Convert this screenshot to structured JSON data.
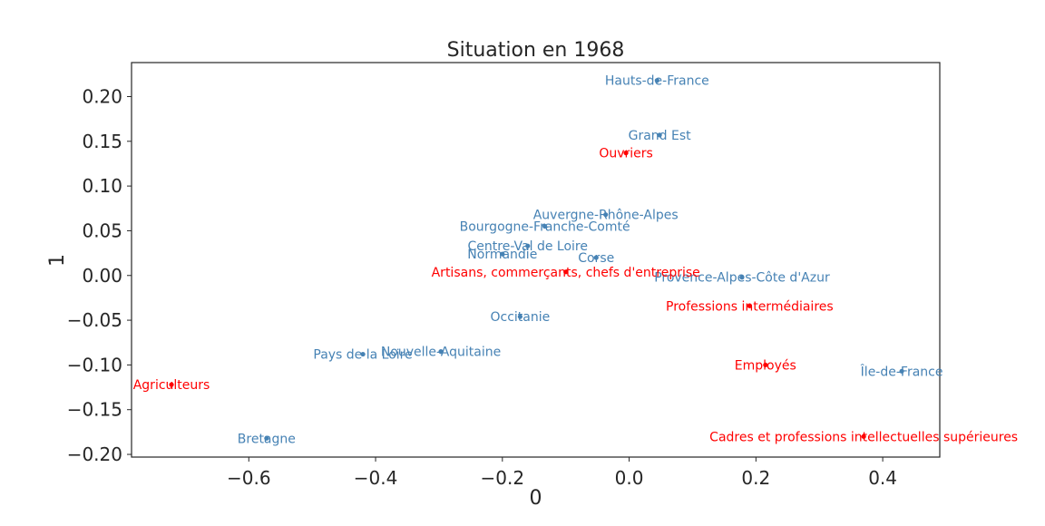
{
  "chart_data": {
    "type": "scatter",
    "title": "Situation en 1968",
    "xlabel": "0",
    "ylabel": "1",
    "xlim": [
      -0.785,
      0.49
    ],
    "ylim": [
      -0.203,
      0.238
    ],
    "grid": false,
    "xticks": [
      {
        "value": -0.6,
        "label": "−0.6"
      },
      {
        "value": -0.4,
        "label": "−0.4"
      },
      {
        "value": -0.2,
        "label": "−0.2"
      },
      {
        "value": 0.0,
        "label": "0.0"
      },
      {
        "value": 0.2,
        "label": "0.2"
      },
      {
        "value": 0.4,
        "label": "0.4"
      }
    ],
    "yticks": [
      {
        "value": 0.2,
        "label": "0.20"
      },
      {
        "value": 0.15,
        "label": "0.15"
      },
      {
        "value": 0.1,
        "label": "0.10"
      },
      {
        "value": 0.05,
        "label": "0.05"
      },
      {
        "value": 0.0,
        "label": "0.00"
      },
      {
        "value": -0.05,
        "label": "−0.05"
      },
      {
        "value": -0.1,
        "label": "−0.10"
      },
      {
        "value": -0.15,
        "label": "−0.15"
      },
      {
        "value": -0.2,
        "label": "−0.20"
      }
    ],
    "colors": {
      "regions": "#4682b4",
      "categories": "#ff0000",
      "axes": "#262626"
    },
    "series": [
      {
        "group": "regions",
        "points": [
          {
            "label": "Hauts-de-France",
            "x": 0.044,
            "y": 0.218
          },
          {
            "label": "Grand Est",
            "x": 0.048,
            "y": 0.157
          },
          {
            "label": "Auvergne-Rhône-Alpes",
            "x": -0.037,
            "y": 0.068
          },
          {
            "label": "Bourgogne-Franche-Comté",
            "x": -0.133,
            "y": 0.055
          },
          {
            "label": "Centre-Val de Loire",
            "x": -0.16,
            "y": 0.033
          },
          {
            "label": "Normandie",
            "x": -0.2,
            "y": 0.024
          },
          {
            "label": "Corse",
            "x": -0.052,
            "y": 0.02
          },
          {
            "label": "Provence-Alpes-Côte d'Azur",
            "x": 0.178,
            "y": -0.002
          },
          {
            "label": "Occitanie",
            "x": -0.172,
            "y": -0.046
          },
          {
            "label": "Nouvelle-Aquitaine",
            "x": -0.297,
            "y": -0.085
          },
          {
            "label": "Pays de la Loire",
            "x": -0.42,
            "y": -0.088
          },
          {
            "label": "Île-de-France",
            "x": 0.43,
            "y": -0.107
          },
          {
            "label": "Bretagne",
            "x": -0.572,
            "y": -0.182
          }
        ]
      },
      {
        "group": "categories",
        "points": [
          {
            "label": "Ouvriers",
            "x": -0.005,
            "y": 0.137
          },
          {
            "label": "Artisans, commerçants, chefs d'entreprise",
            "x": -0.1,
            "y": 0.004
          },
          {
            "label": "Professions intermédiaires",
            "x": 0.19,
            "y": -0.034
          },
          {
            "label": "Employés",
            "x": 0.215,
            "y": -0.1
          },
          {
            "label": "Agriculteurs",
            "x": -0.722,
            "y": -0.122
          },
          {
            "label": "Cadres et professions intellectuelles supérieures",
            "x": 0.37,
            "y": -0.18
          }
        ]
      }
    ]
  }
}
